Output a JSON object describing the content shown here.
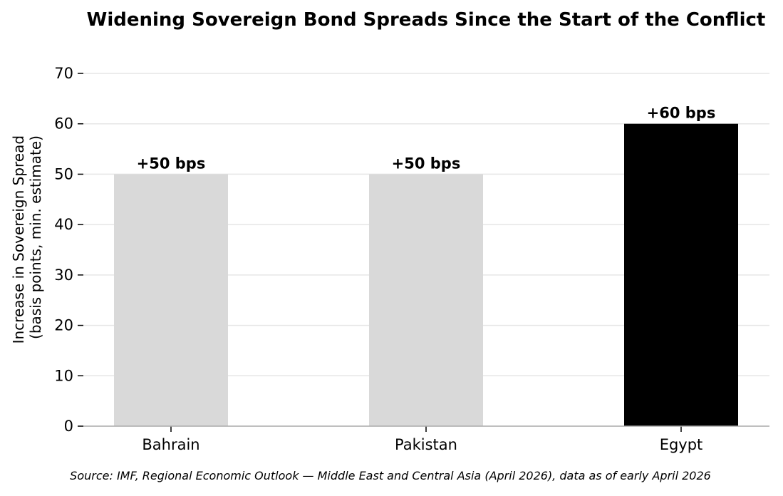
{
  "chart_data": {
    "type": "bar",
    "title": "Widening Sovereign Bond Spreads Since the Start of the Conflict",
    "xlabel": "",
    "ylabel": [
      "Increase in Sovereign Spread",
      "(basis points, min. estimate)"
    ],
    "categories": [
      "Bahrain",
      "Pakistan",
      "Egypt"
    ],
    "values": [
      50,
      50,
      60
    ],
    "data_labels": [
      "+50 bps",
      "+50 bps",
      "+60 bps"
    ],
    "bar_colors": [
      "#d9d9d9",
      "#d9d9d9",
      "#000000"
    ],
    "ylim": [
      0,
      70
    ],
    "yticks": [
      0,
      10,
      20,
      30,
      40,
      50,
      60,
      70
    ],
    "grid": "horizontal",
    "grid_color": "#e6e6e6",
    "axis_color": "#aaaaaa",
    "source": "Source: IMF, Regional Economic Outlook — Middle East and Central Asia (April 2026), data as of early April 2026"
  }
}
